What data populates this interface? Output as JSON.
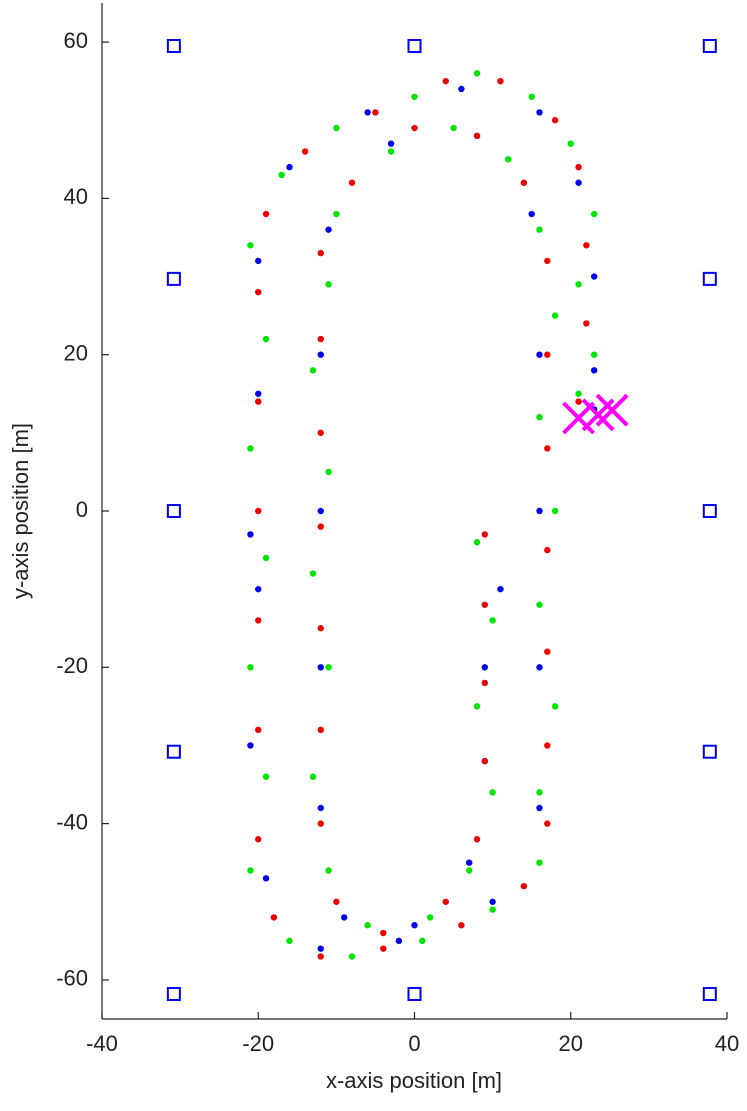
{
  "chart_data": {
    "type": "scatter",
    "xlabel": "x-axis position [m]",
    "ylabel": "y-axis position [m]",
    "xlim": [
      -40,
      40
    ],
    "ylim": [
      -65,
      65
    ],
    "xticks": [
      -40,
      -20,
      0,
      20,
      40
    ],
    "yticks": [
      -60,
      -40,
      -20,
      0,
      20,
      40,
      60
    ],
    "series": [
      {
        "color": "#00e600",
        "marker": "circle",
        "x": [
          8,
          10,
          8,
          10,
          7,
          2,
          -6,
          -11,
          -13,
          -11,
          -13,
          -11,
          -13,
          -11,
          -10,
          -3,
          5,
          12,
          16,
          18,
          16,
          18,
          16,
          18,
          16,
          16,
          10,
          1,
          -8,
          -16,
          -21,
          -19,
          -21,
          -19,
          -21,
          -19,
          -21,
          -17,
          -10,
          0,
          8,
          15,
          20,
          23,
          21,
          23,
          21
        ],
        "y": [
          -4,
          -14,
          -25,
          -36,
          -46,
          -52,
          -53,
          -46,
          -34,
          -20,
          -8,
          5,
          18,
          29,
          38,
          46,
          49,
          45,
          36,
          25,
          12,
          0,
          -12,
          -25,
          -36,
          -45,
          -51,
          -55,
          -57,
          -55,
          -46,
          -34,
          -20,
          -6,
          8,
          22,
          34,
          43,
          49,
          53,
          56,
          53,
          47,
          38,
          29,
          20,
          15
        ]
      },
      {
        "color": "#0000ee",
        "marker": "circle",
        "x": [
          11,
          9,
          9,
          7,
          0,
          -9,
          -12,
          -12,
          -12,
          -12,
          -11,
          -3,
          8,
          15,
          16,
          16,
          16,
          16,
          10,
          -2,
          -12,
          -19,
          -21,
          -20,
          -21,
          -20,
          -20,
          -16,
          -6,
          6,
          16,
          21,
          23,
          23,
          23
        ],
        "y": [
          -10,
          -20,
          -32,
          -45,
          -53,
          -52,
          -38,
          -20,
          0,
          20,
          36,
          47,
          48,
          38,
          20,
          0,
          -20,
          -38,
          -50,
          -55,
          -56,
          -47,
          -30,
          -10,
          -3,
          15,
          32,
          44,
          51,
          54,
          51,
          42,
          30,
          18,
          13
        ]
      },
      {
        "color": "#ee0000",
        "marker": "circle",
        "x": [
          9,
          9,
          9,
          9,
          8,
          4,
          -4,
          -10,
          -12,
          -12,
          -12,
          -12,
          -12,
          -12,
          -12,
          -8,
          0,
          8,
          14,
          17,
          17,
          17,
          17,
          17,
          17,
          17,
          14,
          6,
          -4,
          -12,
          -18,
          -20,
          -20,
          -20,
          -20,
          -20,
          -20,
          -19,
          -14,
          -5,
          4,
          11,
          18,
          21,
          22,
          22,
          21
        ],
        "y": [
          -3,
          -12,
          -22,
          -32,
          -42,
          -50,
          -54,
          -50,
          -40,
          -28,
          -15,
          -2,
          10,
          22,
          33,
          42,
          49,
          48,
          42,
          32,
          20,
          8,
          -5,
          -18,
          -30,
          -40,
          -48,
          -53,
          -56,
          -57,
          -52,
          -42,
          -28,
          -14,
          0,
          14,
          28,
          38,
          46,
          51,
          55,
          55,
          50,
          44,
          34,
          24,
          14
        ]
      },
      {
        "color": "#0000ee",
        "marker": "square",
        "x": [
          -30.8,
          0,
          37.8,
          -30.8,
          37.8,
          -30.8,
          37.8,
          -30.8,
          37.8,
          -30.8,
          0,
          37.8
        ],
        "y": [
          59.5,
          59.5,
          59.5,
          29.7,
          29.7,
          0,
          0,
          -30.8,
          -30.8,
          -61.8,
          -61.8,
          -61.8
        ]
      },
      {
        "color": "#ff00ff",
        "marker": "x",
        "x": [
          21,
          23.5,
          25.3
        ],
        "y": [
          11.9,
          12.3,
          12.9
        ]
      }
    ]
  }
}
